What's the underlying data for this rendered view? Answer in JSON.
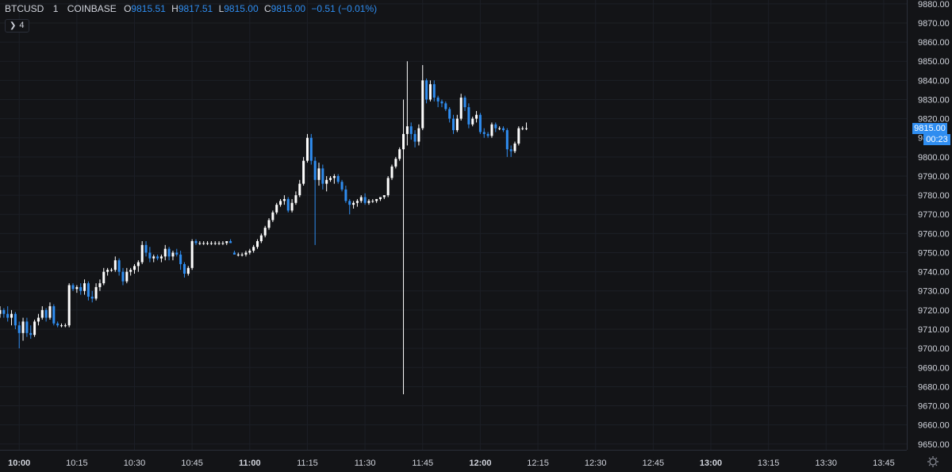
{
  "header": {
    "symbol": "BTCUSD",
    "interval": "1",
    "exchange": "COINBASE",
    "open_label": "O",
    "open": "9815.51",
    "high_label": "H",
    "high": "9817.51",
    "low_label": "L",
    "low": "9815.00",
    "close_label": "C",
    "close": "9815.00",
    "change": "−0.51 (−0.01%)"
  },
  "indicators_toggle": {
    "count": "4"
  },
  "price_tag": {
    "price": "9815.00",
    "countdown": "00:23"
  },
  "colors": {
    "up": "#ffffff",
    "down": "#2f8df0",
    "background": "#131417",
    "grid": "#1c1f26",
    "text": "#d1d4dc"
  },
  "chart_data": {
    "type": "candlestick",
    "y_axis_ticks": [
      "9880.00",
      "9870.00",
      "9860.00",
      "9850.00",
      "9840.00",
      "9830.00",
      "9820.00",
      "9810.00",
      "9800.00",
      "9790.00",
      "9780.00",
      "9770.00",
      "9760.00",
      "9750.00",
      "9740.00",
      "9730.00",
      "9720.00",
      "9710.00",
      "9700.00",
      "9690.00",
      "9680.00",
      "9670.00",
      "9660.00",
      "9650.00"
    ],
    "x_axis_ticks": [
      "10:00",
      "10:15",
      "10:30",
      "10:45",
      "11:00",
      "11:15",
      "11:30",
      "11:45",
      "12:00",
      "12:15",
      "12:30",
      "12:45",
      "13:00",
      "13:15",
      "13:30",
      "13:45"
    ],
    "ylim": [
      9647,
      9882
    ],
    "start_time": "09:55",
    "end_time": "13:51",
    "candles": [
      [
        "09:55",
        9718,
        9722,
        9716,
        9720
      ],
      [
        "09:56",
        9720,
        9721,
        9716,
        9718
      ],
      [
        "09:57",
        9718,
        9722,
        9714,
        9716
      ],
      [
        "09:58",
        9716,
        9720,
        9712,
        9718
      ],
      [
        "09:59",
        9718,
        9719,
        9710,
        9712
      ],
      [
        "10:00",
        9712,
        9714,
        9700,
        9708
      ],
      [
        "10:01",
        9708,
        9716,
        9704,
        9714
      ],
      [
        "10:02",
        9714,
        9716,
        9706,
        9708
      ],
      [
        "10:03",
        9708,
        9712,
        9705,
        9707
      ],
      [
        "10:04",
        9707,
        9715,
        9706,
        9714
      ],
      [
        "10:05",
        9714,
        9718,
        9712,
        9716
      ],
      [
        "10:06",
        9716,
        9722,
        9715,
        9720
      ],
      [
        "10:07",
        9720,
        9721,
        9714,
        9716
      ],
      [
        "10:08",
        9716,
        9724,
        9715,
        9722
      ],
      [
        "10:09",
        9722,
        9723,
        9712,
        9713
      ],
      [
        "10:10",
        9713,
        9714,
        9711,
        9712
      ],
      [
        "10:11",
        9712,
        9713,
        9711,
        9712
      ],
      [
        "10:12",
        9712,
        9713,
        9711,
        9712
      ],
      [
        "10:13",
        9712,
        9734,
        9711,
        9733
      ],
      [
        "10:14",
        9733,
        9734,
        9730,
        9731
      ],
      [
        "10:15",
        9731,
        9733,
        9729,
        9732
      ],
      [
        "10:16",
        9732,
        9734,
        9728,
        9730
      ],
      [
        "10:17",
        9730,
        9736,
        9728,
        9734
      ],
      [
        "10:18",
        9734,
        9735,
        9725,
        9727
      ],
      [
        "10:19",
        9727,
        9730,
        9724,
        9726
      ],
      [
        "10:20",
        9726,
        9734,
        9725,
        9732
      ],
      [
        "10:21",
        9732,
        9736,
        9730,
        9734
      ],
      [
        "10:22",
        9734,
        9742,
        9733,
        9740
      ],
      [
        "10:23",
        9740,
        9742,
        9738,
        9741
      ],
      [
        "10:24",
        9741,
        9742,
        9740,
        9741
      ],
      [
        "10:25",
        9741,
        9748,
        9740,
        9746
      ],
      [
        "10:26",
        9746,
        9747,
        9738,
        9740
      ],
      [
        "10:27",
        9740,
        9742,
        9733,
        9735
      ],
      [
        "10:28",
        9735,
        9742,
        9734,
        9740
      ],
      [
        "10:29",
        9740,
        9742,
        9738,
        9741
      ],
      [
        "10:30",
        9741,
        9744,
        9739,
        9743
      ],
      [
        "10:31",
        9743,
        9746,
        9740,
        9745
      ],
      [
        "10:32",
        9745,
        9756,
        9744,
        9754
      ],
      [
        "10:33",
        9754,
        9756,
        9748,
        9750
      ],
      [
        "10:34",
        9750,
        9753,
        9745,
        9747
      ],
      [
        "10:35",
        9747,
        9749,
        9745,
        9748
      ],
      [
        "10:36",
        9748,
        9749,
        9746,
        9747
      ],
      [
        "10:37",
        9747,
        9749,
        9745,
        9748
      ],
      [
        "10:38",
        9748,
        9754,
        9746,
        9752
      ],
      [
        "10:39",
        9752,
        9753,
        9746,
        9748
      ],
      [
        "10:40",
        9748,
        9751,
        9746,
        9750
      ],
      [
        "10:41",
        9750,
        9752,
        9748,
        9749
      ],
      [
        "10:42",
        9749,
        9751,
        9741,
        9744
      ],
      [
        "10:43",
        9744,
        9745,
        9737,
        9739
      ],
      [
        "10:44",
        9739,
        9743,
        9738,
        9742
      ],
      [
        "10:45",
        9742,
        9757,
        9741,
        9756
      ],
      [
        "10:46",
        9756,
        9757,
        9754,
        9755
      ],
      [
        "10:47",
        9755,
        9756,
        9754,
        9755
      ],
      [
        "10:48",
        9755,
        9756,
        9754,
        9755
      ],
      [
        "10:49",
        9755,
        9756,
        9754,
        9755
      ],
      [
        "10:50",
        9755,
        9756,
        9754,
        9755
      ],
      [
        "10:51",
        9755,
        9756,
        9754,
        9755
      ],
      [
        "10:52",
        9755,
        9756,
        9754,
        9755
      ],
      [
        "10:53",
        9755,
        9756,
        9754,
        9755
      ],
      [
        "10:54",
        9755,
        9756,
        9754,
        9756
      ],
      [
        "10:55",
        9756,
        9757,
        9755,
        9755
      ],
      [
        "10:56",
        9750,
        9751,
        9749,
        9749
      ],
      [
        "10:57",
        9749,
        9750,
        9748,
        9749
      ],
      [
        "10:58",
        9749,
        9750,
        9748,
        9749
      ],
      [
        "10:59",
        9749,
        9751,
        9748,
        9750
      ],
      [
        "11:00",
        9750,
        9752,
        9749,
        9751
      ],
      [
        "11:01",
        9751,
        9754,
        9750,
        9753
      ],
      [
        "11:02",
        9753,
        9757,
        9752,
        9756
      ],
      [
        "11:03",
        9756,
        9760,
        9755,
        9759
      ],
      [
        "11:04",
        9759,
        9764,
        9758,
        9763
      ],
      [
        "11:05",
        9763,
        9768,
        9762,
        9767
      ],
      [
        "11:06",
        9767,
        9772,
        9766,
        9771
      ],
      [
        "11:07",
        9771,
        9776,
        9770,
        9775
      ],
      [
        "11:08",
        9775,
        9778,
        9774,
        9777
      ],
      [
        "11:09",
        9777,
        9780,
        9775,
        9778
      ],
      [
        "11:10",
        9778,
        9779,
        9771,
        9772
      ],
      [
        "11:11",
        9772,
        9778,
        9771,
        9776
      ],
      [
        "11:12",
        9776,
        9782,
        9775,
        9780
      ],
      [
        "11:13",
        9780,
        9788,
        9779,
        9786
      ],
      [
        "11:14",
        9786,
        9800,
        9785,
        9798
      ],
      [
        "11:15",
        9798,
        9812,
        9797,
        9810
      ],
      [
        "11:16",
        9810,
        9812,
        9796,
        9798
      ],
      [
        "11:17",
        9798,
        9800,
        9754,
        9788
      ],
      [
        "11:18",
        9788,
        9797,
        9785,
        9794
      ],
      [
        "11:19",
        9794,
        9796,
        9783,
        9786
      ],
      [
        "11:20",
        9786,
        9790,
        9782,
        9788
      ],
      [
        "11:21",
        9788,
        9790,
        9787,
        9789
      ],
      [
        "11:22",
        9789,
        9791,
        9786,
        9790
      ],
      [
        "11:23",
        9790,
        9791,
        9786,
        9787
      ],
      [
        "11:24",
        9787,
        9788,
        9782,
        9783
      ],
      [
        "11:25",
        9783,
        9785,
        9776,
        9777
      ],
      [
        "11:26",
        9777,
        9778,
        9770,
        9775
      ],
      [
        "11:27",
        9775,
        9777,
        9773,
        9776
      ],
      [
        "11:28",
        9776,
        9778,
        9774,
        9777
      ],
      [
        "11:29",
        9777,
        9780,
        9776,
        9779
      ],
      [
        "11:30",
        9779,
        9781,
        9775,
        9776
      ],
      [
        "11:31",
        9776,
        9778,
        9775,
        9777
      ],
      [
        "11:32",
        9777,
        9778,
        9776,
        9777
      ],
      [
        "11:33",
        9777,
        9778,
        9776,
        9778
      ],
      [
        "11:34",
        9778,
        9779,
        9777,
        9779
      ],
      [
        "11:35",
        9779,
        9780,
        9778,
        9780
      ],
      [
        "11:36",
        9780,
        9790,
        9779,
        9789
      ],
      [
        "11:37",
        9789,
        9796,
        9788,
        9795
      ],
      [
        "11:38",
        9795,
        9800,
        9794,
        9799
      ],
      [
        "11:39",
        9799,
        9805,
        9798,
        9804
      ],
      [
        "11:40",
        9804,
        9830,
        9676,
        9812
      ],
      [
        "11:41",
        9812,
        9850,
        9806,
        9816
      ],
      [
        "11:42",
        9816,
        9818,
        9809,
        9812
      ],
      [
        "11:43",
        9812,
        9814,
        9805,
        9808
      ],
      [
        "11:44",
        9808,
        9817,
        9806,
        9815
      ],
      [
        "11:45",
        9815,
        9848,
        9814,
        9840
      ],
      [
        "11:46",
        9840,
        9841,
        9828,
        9830
      ],
      [
        "11:47",
        9830,
        9840,
        9829,
        9838
      ],
      [
        "11:48",
        9838,
        9840,
        9829,
        9831
      ],
      [
        "11:49",
        9831,
        9832,
        9826,
        9829
      ],
      [
        "11:50",
        9829,
        9830,
        9826,
        9828
      ],
      [
        "11:51",
        9828,
        9829,
        9824,
        9825
      ],
      [
        "11:52",
        9825,
        9826,
        9818,
        9820
      ],
      [
        "11:53",
        9820,
        9822,
        9812,
        9814
      ],
      [
        "11:54",
        9814,
        9822,
        9813,
        9820
      ],
      [
        "11:55",
        9820,
        9833,
        9819,
        9831
      ],
      [
        "11:56",
        9831,
        9832,
        9824,
        9826
      ],
      [
        "11:57",
        9826,
        9828,
        9815,
        9817
      ],
      [
        "11:58",
        9817,
        9821,
        9816,
        9820
      ],
      [
        "11:59",
        9820,
        9824,
        9818,
        9822
      ],
      [
        "12:00",
        9822,
        9823,
        9812,
        9813
      ],
      [
        "12:01",
        9813,
        9815,
        9810,
        9812
      ],
      [
        "12:02",
        9812,
        9813,
        9810,
        9811
      ],
      [
        "12:03",
        9811,
        9818,
        9810,
        9817
      ],
      [
        "12:04",
        9817,
        9818,
        9813,
        9815
      ],
      [
        "12:05",
        9815,
        9816,
        9814,
        9815
      ],
      [
        "12:06",
        9815,
        9816,
        9813,
        9814
      ],
      [
        "12:07",
        9814,
        9815,
        9800,
        9804
      ],
      [
        "12:08",
        9804,
        9806,
        9800,
        9803
      ],
      [
        "12:09",
        9803,
        9808,
        9802,
        9807
      ],
      [
        "12:10",
        9807,
        9816,
        9806,
        9815
      ],
      [
        "12:11",
        9815,
        9816,
        9814,
        9815
      ],
      [
        "12:12",
        9815,
        9818,
        9814,
        9815
      ]
    ]
  }
}
